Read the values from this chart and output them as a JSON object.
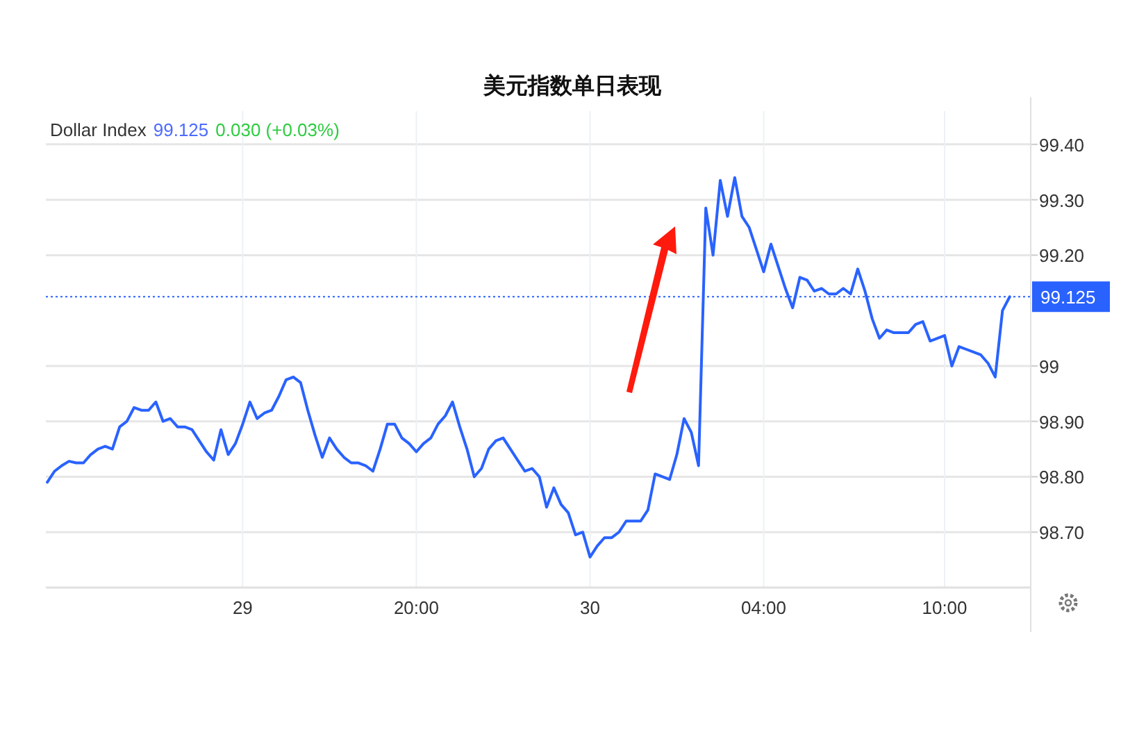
{
  "chart_data": {
    "type": "line",
    "title": "美元指数单日表现",
    "annotations": [
      "Dollar Index",
      "99.125",
      "0.030 (+0.03%)"
    ],
    "categories": [
      null,
      null,
      null,
      null,
      null,
      null,
      null,
      null,
      null,
      null,
      null,
      null,
      null,
      null,
      null,
      null,
      null,
      null,
      null,
      null,
      null,
      null,
      null,
      null,
      null,
      null,
      null,
      "29",
      null,
      null,
      null,
      null,
      null,
      null,
      null,
      null,
      null,
      null,
      null,
      null,
      null,
      null,
      null,
      null,
      null,
      null,
      null,
      null,
      null,
      null,
      null,
      "20:00",
      null,
      null,
      null,
      null,
      null,
      null,
      null,
      null,
      null,
      null,
      null,
      null,
      null,
      null,
      null,
      null,
      null,
      null,
      null,
      null,
      null,
      null,
      null,
      "30",
      null,
      null,
      null,
      null,
      null,
      null,
      null,
      null,
      null,
      null,
      null,
      null,
      null,
      null,
      null,
      null,
      null,
      null,
      null,
      null,
      null,
      null,
      null,
      "04:00",
      null,
      null,
      null,
      null,
      null,
      null,
      null,
      null,
      null,
      null,
      null,
      null,
      null,
      null,
      null,
      null,
      null,
      null,
      null,
      null,
      null,
      null,
      null,
      null,
      "10:00",
      null,
      null,
      null,
      null,
      null,
      null,
      null,
      null,
      null
    ],
    "ylim": [
      98.6,
      99.46
    ],
    "yticks": [
      {
        "value": 98.7,
        "label": "98.70"
      },
      {
        "value": 98.8,
        "label": "98.80"
      },
      {
        "value": 98.9,
        "label": "98.90"
      },
      99,
      {
        "value": 99.2,
        "label": "99.20"
      },
      {
        "value": 99.3,
        "label": "99.30"
      },
      {
        "value": 99.4,
        "label": "99.40"
      }
    ],
    "grid": true,
    "marker": "none",
    "line_style": "solid",
    "ref_lines": [
      {
        "axis": "y",
        "value": 99.125,
        "label": "99.125",
        "color": "#2962ff",
        "line_style": "dotted"
      }
    ],
    "series": [
      {
        "color": "#2962ff",
        "values": [
          98.79,
          98.81,
          98.82,
          98.828,
          98.825,
          98.825,
          98.84,
          98.85,
          98.855,
          98.85,
          98.89,
          98.9,
          98.925,
          98.92,
          98.92,
          98.935,
          98.9,
          98.905,
          98.89,
          98.89,
          98.885,
          98.865,
          98.845,
          98.83,
          98.885,
          98.84,
          98.86,
          98.895,
          98.935,
          98.905,
          98.915,
          98.92,
          98.945,
          98.975,
          98.98,
          98.97,
          98.92,
          98.875,
          98.835,
          98.87,
          98.85,
          98.835,
          98.825,
          98.825,
          98.82,
          98.81,
          98.85,
          98.895,
          98.895,
          98.87,
          98.86,
          98.845,
          98.86,
          98.87,
          98.895,
          98.91,
          98.935,
          98.89,
          98.85,
          98.8,
          98.815,
          98.85,
          98.865,
          98.87,
          98.85,
          98.83,
          98.81,
          98.815,
          98.8,
          98.745,
          98.78,
          98.75,
          98.735,
          98.695,
          98.7,
          98.655,
          98.675,
          98.69,
          98.69,
          98.7,
          98.72,
          98.72,
          98.72,
          98.74,
          98.805,
          98.8,
          98.795,
          98.84,
          98.905,
          98.88,
          98.82,
          99.285,
          99.2,
          99.335,
          99.27,
          99.34,
          99.27,
          99.25,
          99.21,
          99.17,
          99.22,
          99.18,
          99.14,
          99.105,
          99.16,
          99.155,
          99.135,
          99.14,
          99.13,
          99.13,
          99.14,
          99.13,
          99.175,
          99.135,
          99.085,
          99.05,
          99.065,
          99.06,
          99.06,
          99.06,
          99.075,
          99.08,
          99.045,
          99.05,
          99.055,
          99.0,
          99.035,
          99.03,
          99.025,
          99.02,
          99.005,
          98.98,
          99.1,
          99.125
        ]
      }
    ]
  }
}
